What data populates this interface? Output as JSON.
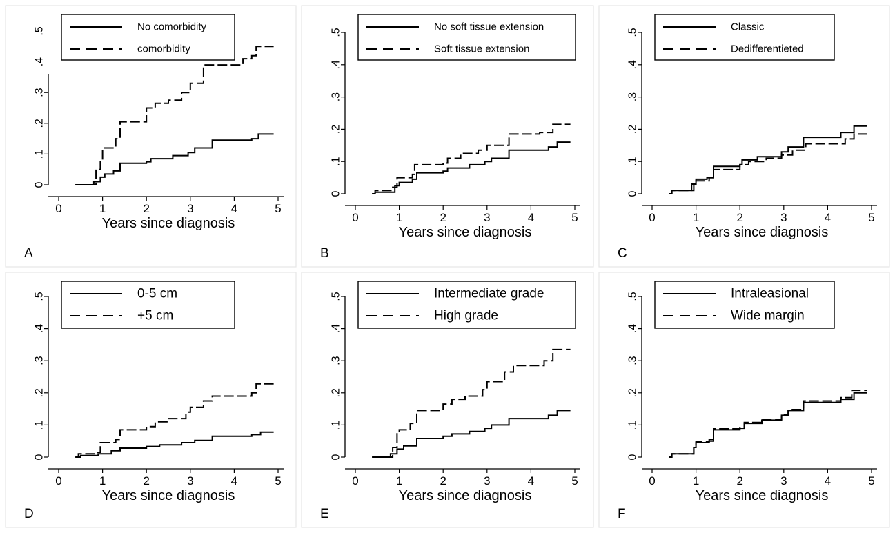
{
  "chart_data": [
    {
      "type": "line",
      "step": true,
      "panel_label": "A",
      "xlabel": "Years since diagnosis",
      "ylabel": "",
      "xlim": [
        0,
        5
      ],
      "ylim": [
        0,
        0.5
      ],
      "x_ticks": [
        "0",
        "1",
        "2",
        "3",
        "4",
        "5"
      ],
      "y_ticks": [
        "0",
        ".1",
        ".2",
        ".3",
        ".4",
        ".5"
      ],
      "legend": "top-left",
      "grid": false,
      "series": [
        {
          "name": "No comorbidity",
          "dash": "solid",
          "x": [
            0.38,
            0.8,
            0.95,
            1.05,
            1.25,
            1.4,
            2.0,
            2.1,
            2.6,
            2.95,
            3.1,
            3.5,
            4.4,
            4.55,
            4.9
          ],
          "y": [
            0.0,
            0.01,
            0.025,
            0.035,
            0.045,
            0.07,
            0.075,
            0.085,
            0.095,
            0.105,
            0.12,
            0.145,
            0.15,
            0.165,
            0.165
          ]
        },
        {
          "name": "comorbidity",
          "dash": "dashed",
          "x": [
            0.38,
            0.85,
            0.95,
            1.0,
            1.3,
            1.4,
            2.0,
            2.2,
            2.5,
            2.8,
            3.0,
            3.3,
            4.2,
            4.4,
            4.5,
            4.9
          ],
          "y": [
            0.0,
            0.05,
            0.08,
            0.12,
            0.15,
            0.205,
            0.25,
            0.265,
            0.275,
            0.3,
            0.33,
            0.39,
            0.41,
            0.42,
            0.45,
            0.45
          ]
        }
      ]
    },
    {
      "type": "line",
      "step": true,
      "panel_label": "B",
      "xlabel": "Years since diagnosis",
      "ylabel": "",
      "xlim": [
        0,
        5
      ],
      "ylim": [
        0,
        0.5
      ],
      "x_ticks": [
        "0",
        "1",
        "2",
        "3",
        "4",
        "5"
      ],
      "y_ticks": [
        "0",
        ".1",
        ".2",
        ".3",
        ".4",
        ".5"
      ],
      "legend": "top-left",
      "grid": false,
      "series": [
        {
          "name": "No soft tissue extension",
          "dash": "solid",
          "x": [
            0.38,
            0.45,
            0.9,
            1.0,
            1.3,
            1.4,
            2.0,
            2.1,
            2.6,
            2.95,
            3.1,
            3.5,
            4.4,
            4.6,
            4.9
          ],
          "y": [
            0.0,
            0.005,
            0.025,
            0.035,
            0.045,
            0.065,
            0.07,
            0.08,
            0.09,
            0.1,
            0.11,
            0.135,
            0.145,
            0.16,
            0.16
          ]
        },
        {
          "name": "Soft tissue extension",
          "dash": "dashed",
          "x": [
            0.38,
            0.45,
            0.85,
            0.95,
            1.3,
            1.35,
            2.0,
            2.1,
            2.4,
            2.8,
            3.0,
            3.5,
            4.2,
            4.5,
            4.9
          ],
          "y": [
            0.0,
            0.01,
            0.02,
            0.05,
            0.06,
            0.09,
            0.095,
            0.11,
            0.125,
            0.135,
            0.15,
            0.185,
            0.19,
            0.215,
            0.215
          ]
        }
      ]
    },
    {
      "type": "line",
      "step": true,
      "panel_label": "C",
      "xlabel": "Years since diagnosis",
      "ylabel": "",
      "xlim": [
        0,
        5
      ],
      "ylim": [
        0,
        0.5
      ],
      "x_ticks": [
        "0",
        "1",
        "2",
        "3",
        "4",
        "5"
      ],
      "y_ticks": [
        "0",
        ".1",
        ".2",
        ".3",
        ".4",
        ".5"
      ],
      "legend": "top-left",
      "grid": false,
      "series": [
        {
          "name": "Classic",
          "dash": "solid",
          "x": [
            0.38,
            0.45,
            0.9,
            1.0,
            1.25,
            1.4,
            2.0,
            2.05,
            2.4,
            2.95,
            3.1,
            3.45,
            4.3,
            4.6,
            4.9
          ],
          "y": [
            0.0,
            0.01,
            0.03,
            0.045,
            0.05,
            0.085,
            0.09,
            0.105,
            0.115,
            0.13,
            0.145,
            0.175,
            0.19,
            0.21,
            0.21
          ]
        },
        {
          "name": "Dedifferentieted",
          "dash": "dashed",
          "x": [
            0.38,
            0.45,
            0.95,
            1.0,
            1.3,
            1.4,
            2.0,
            2.2,
            2.6,
            2.95,
            3.2,
            3.5,
            4.4,
            4.6,
            4.9
          ],
          "y": [
            0.0,
            0.01,
            0.03,
            0.04,
            0.05,
            0.075,
            0.09,
            0.1,
            0.11,
            0.12,
            0.135,
            0.155,
            0.17,
            0.185,
            0.185
          ]
        }
      ]
    },
    {
      "type": "line",
      "step": true,
      "panel_label": "D",
      "xlabel": "Years since diagnosis",
      "ylabel": "",
      "xlim": [
        0,
        5
      ],
      "ylim": [
        0,
        0.5
      ],
      "x_ticks": [
        "0",
        "1",
        "2",
        "3",
        "4",
        "5"
      ],
      "y_ticks": [
        "0",
        ".1",
        ".2",
        ".3",
        ".4",
        ".5"
      ],
      "legend": "top-left",
      "grid": false,
      "series": [
        {
          "name": "0-5 cm",
          "dash": "solid",
          "x": [
            0.38,
            0.5,
            0.9,
            1.2,
            1.4,
            2.0,
            2.3,
            2.8,
            3.1,
            3.5,
            4.4,
            4.6,
            4.9
          ],
          "y": [
            0.0,
            0.005,
            0.01,
            0.02,
            0.028,
            0.033,
            0.038,
            0.045,
            0.052,
            0.065,
            0.07,
            0.078,
            0.078
          ]
        },
        {
          "name": "+5 cm",
          "dash": "dashed",
          "x": [
            0.38,
            0.45,
            0.85,
            0.95,
            1.3,
            1.4,
            2.0,
            2.2,
            2.5,
            2.9,
            3.0,
            3.3,
            3.5,
            4.4,
            4.5,
            4.9
          ],
          "y": [
            0.0,
            0.01,
            0.015,
            0.045,
            0.055,
            0.085,
            0.095,
            0.11,
            0.12,
            0.14,
            0.155,
            0.175,
            0.19,
            0.2,
            0.228,
            0.228
          ]
        }
      ]
    },
    {
      "type": "line",
      "step": true,
      "panel_label": "E",
      "xlabel": "Years since diagnosis",
      "ylabel": "",
      "xlim": [
        0,
        5
      ],
      "ylim": [
        0,
        0.5
      ],
      "x_ticks": [
        "0",
        "1",
        "2",
        "3",
        "4",
        "5"
      ],
      "y_ticks": [
        "0",
        ".1",
        ".2",
        ".3",
        ".4",
        ".5"
      ],
      "legend": "top-left",
      "grid": false,
      "series": [
        {
          "name": "Intermediate grade",
          "dash": "solid",
          "x": [
            0.38,
            0.8,
            0.95,
            1.1,
            1.4,
            2.0,
            2.2,
            2.6,
            2.95,
            3.1,
            3.5,
            4.4,
            4.6,
            4.9
          ],
          "y": [
            0.0,
            0.01,
            0.025,
            0.035,
            0.058,
            0.065,
            0.072,
            0.08,
            0.09,
            0.1,
            0.12,
            0.13,
            0.145,
            0.145
          ]
        },
        {
          "name": "High grade",
          "dash": "dashed",
          "x": [
            0.38,
            0.85,
            0.95,
            1.0,
            1.25,
            1.4,
            2.0,
            2.2,
            2.5,
            2.9,
            3.0,
            3.4,
            3.6,
            4.3,
            4.5,
            4.9
          ],
          "y": [
            0.0,
            0.03,
            0.075,
            0.085,
            0.105,
            0.145,
            0.165,
            0.18,
            0.19,
            0.21,
            0.235,
            0.265,
            0.285,
            0.3,
            0.335,
            0.335
          ]
        }
      ]
    },
    {
      "type": "line",
      "step": true,
      "panel_label": "F",
      "xlabel": "Years since diagnosis",
      "ylabel": "",
      "xlim": [
        0,
        5
      ],
      "ylim": [
        0,
        0.5
      ],
      "x_ticks": [
        "0",
        "1",
        "2",
        "3",
        "4",
        "5"
      ],
      "y_ticks": [
        "0",
        ".1",
        ".2",
        ".3",
        ".4",
        ".5"
      ],
      "legend": "top-left",
      "grid": false,
      "series": [
        {
          "name": "Intraleasional",
          "dash": "solid",
          "x": [
            0.38,
            0.45,
            0.95,
            1.0,
            1.3,
            1.4,
            2.0,
            2.1,
            2.5,
            2.95,
            3.1,
            3.45,
            4.3,
            4.6,
            4.9
          ],
          "y": [
            0.0,
            0.01,
            0.03,
            0.045,
            0.05,
            0.085,
            0.09,
            0.105,
            0.115,
            0.13,
            0.145,
            0.17,
            0.18,
            0.2,
            0.2
          ]
        },
        {
          "name": "Wide margin",
          "dash": "dashed",
          "x": [
            0.38,
            0.45,
            0.95,
            1.0,
            1.3,
            1.4,
            2.0,
            2.1,
            2.5,
            2.95,
            3.1,
            3.45,
            4.3,
            4.55,
            4.9
          ],
          "y": [
            0.0,
            0.01,
            0.03,
            0.048,
            0.055,
            0.088,
            0.092,
            0.108,
            0.118,
            0.132,
            0.148,
            0.175,
            0.185,
            0.208,
            0.208
          ]
        }
      ]
    }
  ]
}
